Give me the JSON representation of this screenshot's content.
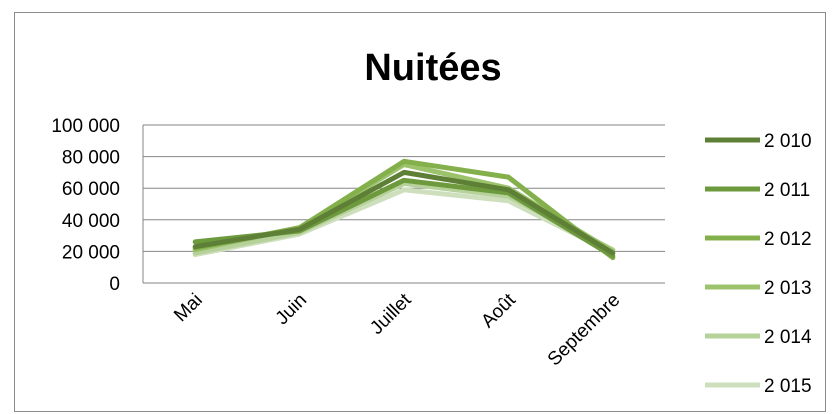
{
  "chart_data": {
    "type": "line",
    "title": "Nuitées",
    "xlabel": "",
    "ylabel": "",
    "categories": [
      "Mai",
      "Juin",
      "Juillet",
      "Août",
      "Septembre"
    ],
    "y_ticks": [
      "0",
      "20 000",
      "40 000",
      "60 000",
      "80 000",
      "100 000"
    ],
    "ylim": [
      0,
      100000
    ],
    "grid": true,
    "legend_position": "right",
    "series": [
      {
        "name": "2 010",
        "color": "#5e7f36",
        "values": [
          23000,
          34000,
          70000,
          59000,
          19000
        ]
      },
      {
        "name": "2 011",
        "color": "#6e9a3e",
        "values": [
          26000,
          33000,
          65000,
          57000,
          17000
        ]
      },
      {
        "name": "2 012",
        "color": "#84b04c",
        "values": [
          22000,
          35000,
          77000,
          67000,
          16000
        ]
      },
      {
        "name": "2 013",
        "color": "#9cc26c",
        "values": [
          21000,
          35000,
          75000,
          60000,
          20000
        ]
      },
      {
        "name": "2 014",
        "color": "#b6d19a",
        "values": [
          19000,
          32000,
          63000,
          55000,
          21000
        ]
      },
      {
        "name": "2 015",
        "color": "#cddfbc",
        "values": [
          18000,
          31000,
          59000,
          52000,
          19000
        ]
      }
    ]
  }
}
